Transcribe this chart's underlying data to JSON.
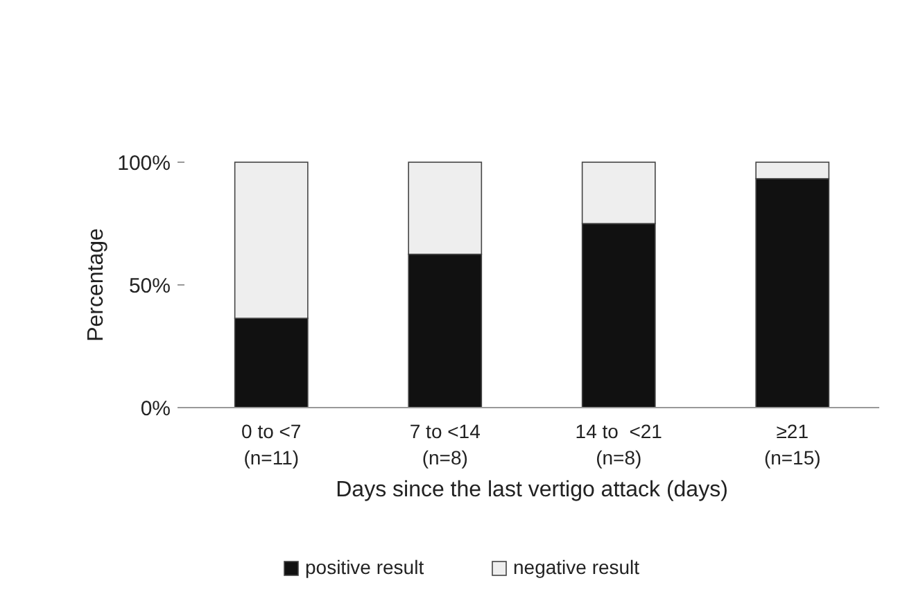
{
  "chart_data": {
    "type": "bar",
    "stacked": true,
    "xlabel": "Days since the last vertigo attack  (days)",
    "ylabel": "Percentage",
    "categories": [
      "0 to <7\n(n=11)",
      "7 to <14\n(n=8)",
      "14 to  <21\n(n=8)",
      "≥21\n(n=15)"
    ],
    "series": [
      {
        "name": "positive result",
        "color": "#111111",
        "values": [
          36.4,
          62.5,
          75,
          93.3
        ]
      },
      {
        "name": "negative result",
        "color": "#eeeeee",
        "values": [
          63.6,
          37.5,
          25,
          6.7
        ]
      }
    ],
    "ylim": [
      0,
      100
    ],
    "yticks": [
      {
        "value": 0,
        "label": "0%"
      },
      {
        "value": 50,
        "label": "50%"
      },
      {
        "value": 100,
        "label": "100%"
      }
    ],
    "grid": false,
    "legend": "bottom"
  }
}
